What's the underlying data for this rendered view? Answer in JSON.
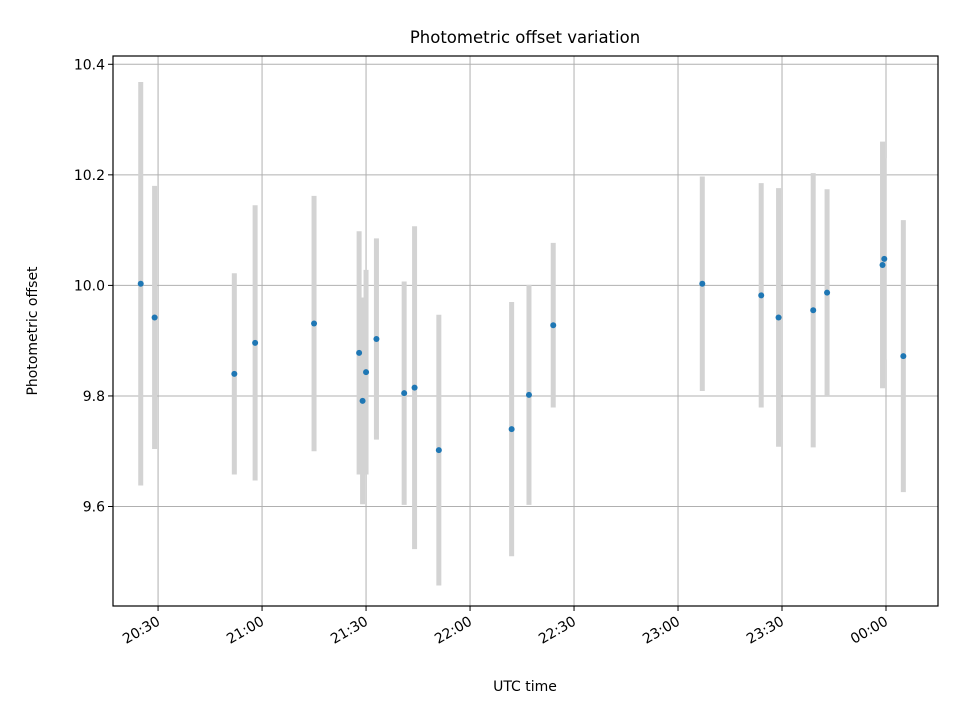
{
  "chart_data": {
    "type": "scatter",
    "title": "Photometric offset variation",
    "xlabel": "UTC time",
    "ylabel": "Photometric offset",
    "x_ticks": [
      "20:30",
      "21:00",
      "21:30",
      "22:00",
      "22:30",
      "23:00",
      "23:30",
      "00:00"
    ],
    "y_ticks": [
      "9.6",
      "9.8",
      "10.0",
      "10.2",
      "10.4"
    ],
    "xlim": [
      "20:17",
      "00:15"
    ],
    "ylim": [
      9.42,
      10.415
    ],
    "grid": true,
    "legend": "none",
    "colors": {
      "point": "#1f77b4",
      "errorbar": "#d3d3d3",
      "grid": "#b0b0b0"
    },
    "points": [
      {
        "time": "20:25",
        "value": 10.003,
        "error": 0.365
      },
      {
        "time": "20:29",
        "value": 9.942,
        "error": 0.238
      },
      {
        "time": "20:52",
        "value": 9.84,
        "error": 0.182
      },
      {
        "time": "20:58",
        "value": 9.896,
        "error": 0.249
      },
      {
        "time": "21:15",
        "value": 9.931,
        "error": 0.231
      },
      {
        "time": "21:28",
        "value": 9.878,
        "error": 0.22
      },
      {
        "time": "21:29",
        "value": 9.791,
        "error": 0.187
      },
      {
        "time": "21:30",
        "value": 9.843,
        "error": 0.185
      },
      {
        "time": "21:33",
        "value": 9.903,
        "error": 0.182
      },
      {
        "time": "21:41",
        "value": 9.805,
        "error": 0.202
      },
      {
        "time": "21:44",
        "value": 9.815,
        "error": 0.292
      },
      {
        "time": "21:51",
        "value": 9.702,
        "error": 0.245
      },
      {
        "time": "22:12",
        "value": 9.74,
        "error": 0.23
      },
      {
        "time": "22:17",
        "value": 9.802,
        "error": 0.199
      },
      {
        "time": "22:24",
        "value": 9.928,
        "error": 0.149
      },
      {
        "time": "23:07",
        "value": 10.003,
        "error": 0.194
      },
      {
        "time": "23:24",
        "value": 9.982,
        "error": 0.203
      },
      {
        "time": "23:29",
        "value": 9.942,
        "error": 0.234
      },
      {
        "time": "23:39",
        "value": 9.955,
        "error": 0.248
      },
      {
        "time": "23:43",
        "value": 9.987,
        "error": 0.187
      },
      {
        "time": "23:59",
        "value": 10.037,
        "error": 0.223
      },
      {
        "time": "23:59:30",
        "value": 10.048,
        "error": 0.182
      },
      {
        "time": "00:05",
        "value": 9.872,
        "error": 0.246
      }
    ]
  }
}
